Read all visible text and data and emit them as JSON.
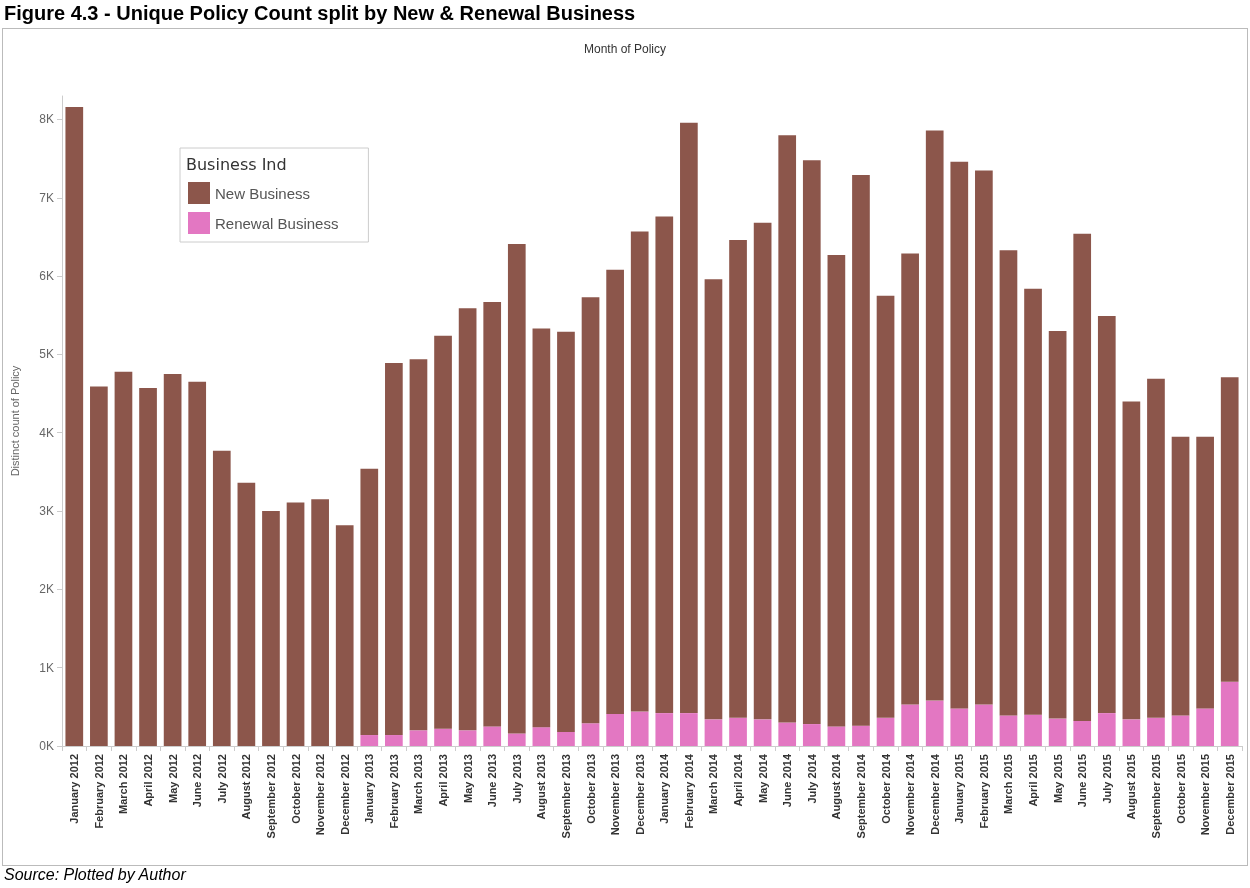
{
  "chart_data": {
    "type": "bar",
    "title": "Figure 4.3 - Unique Policy Count split by New & Renewal Business",
    "xlabel": "Month of Policy",
    "ylabel": "Distinct count of Policy",
    "legend_title": "Business Ind",
    "annotations": [
      "Source: Plotted by Author"
    ],
    "categories": [
      "January 2012",
      "February 2012",
      "March 2012",
      "April 2012",
      "May 2012",
      "June 2012",
      "July 2012",
      "August 2012",
      "September 2012",
      "October 2012",
      "November 2012",
      "December 2012",
      "January 2013",
      "February 2013",
      "March 2013",
      "April 2013",
      "May 2013",
      "June 2013",
      "July 2013",
      "August 2013",
      "September 2013",
      "October 2013",
      "November 2013",
      "December 2013",
      "January 2014",
      "February 2014",
      "March 2014",
      "April 2014",
      "May 2014",
      "June 2014",
      "July 2014",
      "August 2014",
      "September 2014",
      "October 2014",
      "November 2014",
      "December 2014",
      "January 2015",
      "February 2015",
      "March 2015",
      "April 2015",
      "May 2015",
      "June 2015",
      "July 2015",
      "August 2015",
      "September 2015",
      "October 2015",
      "November 2015",
      "December 2015"
    ],
    "stacked": true,
    "series": [
      {
        "name": "Renewal Business",
        "color": "#e377c2",
        "values": [
          0,
          0,
          0,
          0,
          0,
          0,
          0,
          0,
          0,
          0,
          0,
          0,
          140,
          140,
          200,
          220,
          200,
          250,
          160,
          240,
          180,
          290,
          410,
          440,
          420,
          420,
          340,
          360,
          340,
          300,
          280,
          250,
          260,
          360,
          530,
          580,
          480,
          530,
          390,
          400,
          350,
          320,
          420,
          340,
          360,
          390,
          480,
          820
        ]
      },
      {
        "name": "New Business",
        "color": "#8c564b",
        "values": [
          8160,
          4590,
          4780,
          4570,
          4750,
          4650,
          3770,
          3360,
          3000,
          3110,
          3150,
          2820,
          3400,
          4750,
          4740,
          5020,
          5390,
          5420,
          6250,
          5090,
          5110,
          5440,
          5670,
          6130,
          6340,
          7540,
          5620,
          6100,
          6340,
          7500,
          7200,
          6020,
          7030,
          5390,
          5760,
          7280,
          6980,
          6820,
          5940,
          5440,
          4950,
          6220,
          5070,
          4060,
          4330,
          3560,
          3470,
          3890
        ]
      }
    ],
    "ylim": [
      0,
      8300
    ],
    "yticks": [
      {
        "value": 0,
        "label": "0K"
      },
      {
        "value": 1000,
        "label": "1K"
      },
      {
        "value": 2000,
        "label": "2K"
      },
      {
        "value": 3000,
        "label": "3K"
      },
      {
        "value": 4000,
        "label": "4K"
      },
      {
        "value": 5000,
        "label": "5K"
      },
      {
        "value": 6000,
        "label": "6K"
      },
      {
        "value": 7000,
        "label": "7K"
      },
      {
        "value": 8000,
        "label": "8K"
      }
    ],
    "legend": "top left",
    "grid": false
  }
}
